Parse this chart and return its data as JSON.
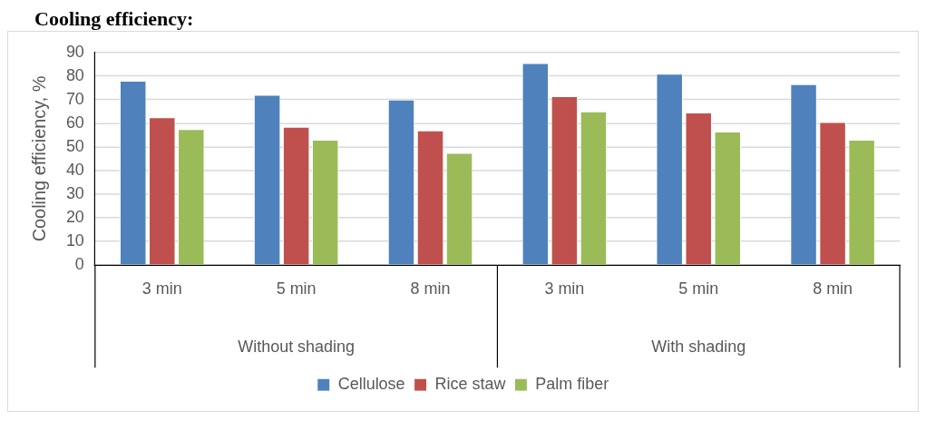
{
  "chart_data": {
    "type": "bar",
    "title": "Cooling efficiency:",
    "ylabel": "Cooling efficiency, %",
    "categories": [
      "3 min",
      "5 min",
      "8 min",
      "3 min",
      "5 min",
      "8 min"
    ],
    "annotations": [
      "Without shading",
      "With shading"
    ],
    "series": [
      {
        "name": "Cellulose",
        "color": "#4f81bd",
        "values": [
          78,
          72,
          70,
          85.5,
          81,
          76.5
        ]
      },
      {
        "name": "Rice staw",
        "color": "#c0504d",
        "values": [
          62.5,
          58.5,
          57,
          71.5,
          64.5,
          60.5
        ]
      },
      {
        "name": "Palm fiber",
        "color": "#9bbb59",
        "values": [
          57.5,
          53,
          47.5,
          65,
          56.5,
          53
        ]
      }
    ],
    "ylim": [
      0,
      90
    ],
    "yticks": [
      0,
      10,
      20,
      30,
      40,
      50,
      60,
      70,
      80,
      90
    ],
    "grid": "y",
    "legend": "bottom"
  }
}
